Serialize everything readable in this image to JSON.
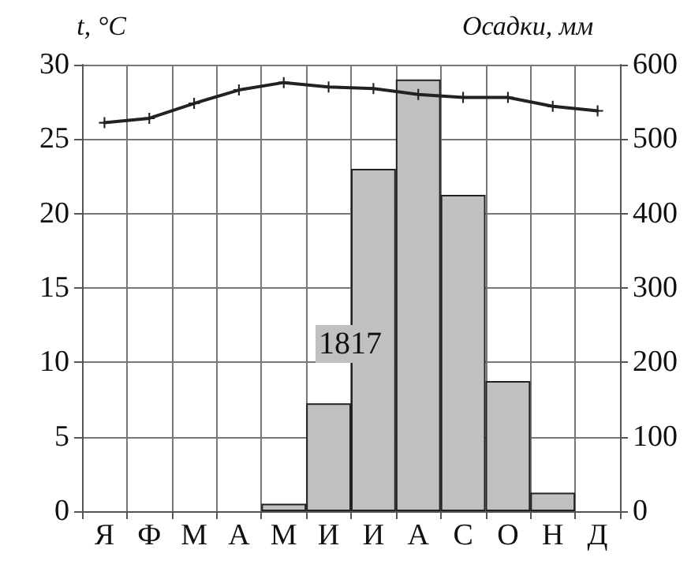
{
  "chart_data": {
    "type": "bar",
    "ylabel": "t, °C",
    "y2label": "Осадки, мм",
    "categories": [
      "Я",
      "Ф",
      "М",
      "А",
      "М",
      "И",
      "И",
      "А",
      "С",
      "О",
      "Н",
      "Д"
    ],
    "series": [
      {
        "axis": "y2",
        "color": "#c0c0c0",
        "values": [
          0,
          0,
          0,
          0,
          10,
          145,
          460,
          580,
          425,
          175,
          25,
          0
        ]
      },
      {
        "type": "line",
        "axis": "y",
        "color": "#222222",
        "marker": "cross",
        "line_style": "solid",
        "values": [
          26.1,
          26.4,
          27.4,
          28.3,
          28.8,
          28.5,
          28.4,
          28.0,
          27.8,
          27.8,
          27.2,
          26.9
        ]
      }
    ],
    "ylim": [
      0,
      30
    ],
    "yticks": [
      0,
      5,
      10,
      15,
      20,
      25,
      30
    ],
    "y2lim": [
      0,
      600
    ],
    "y2ticks": [
      0,
      100,
      200,
      300,
      400,
      500,
      600
    ],
    "annotations": [
      "1817"
    ],
    "grid": true
  }
}
